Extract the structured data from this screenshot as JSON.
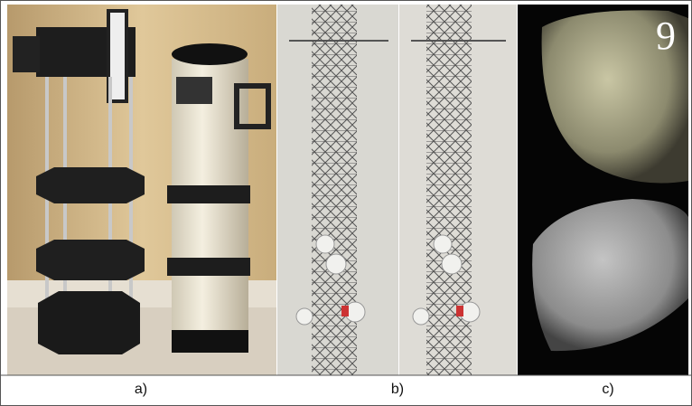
{
  "panels": [
    {
      "label": "a)"
    },
    {
      "label": "b)"
    },
    {
      "label": "c)"
    }
  ],
  "overlay_number": "9"
}
